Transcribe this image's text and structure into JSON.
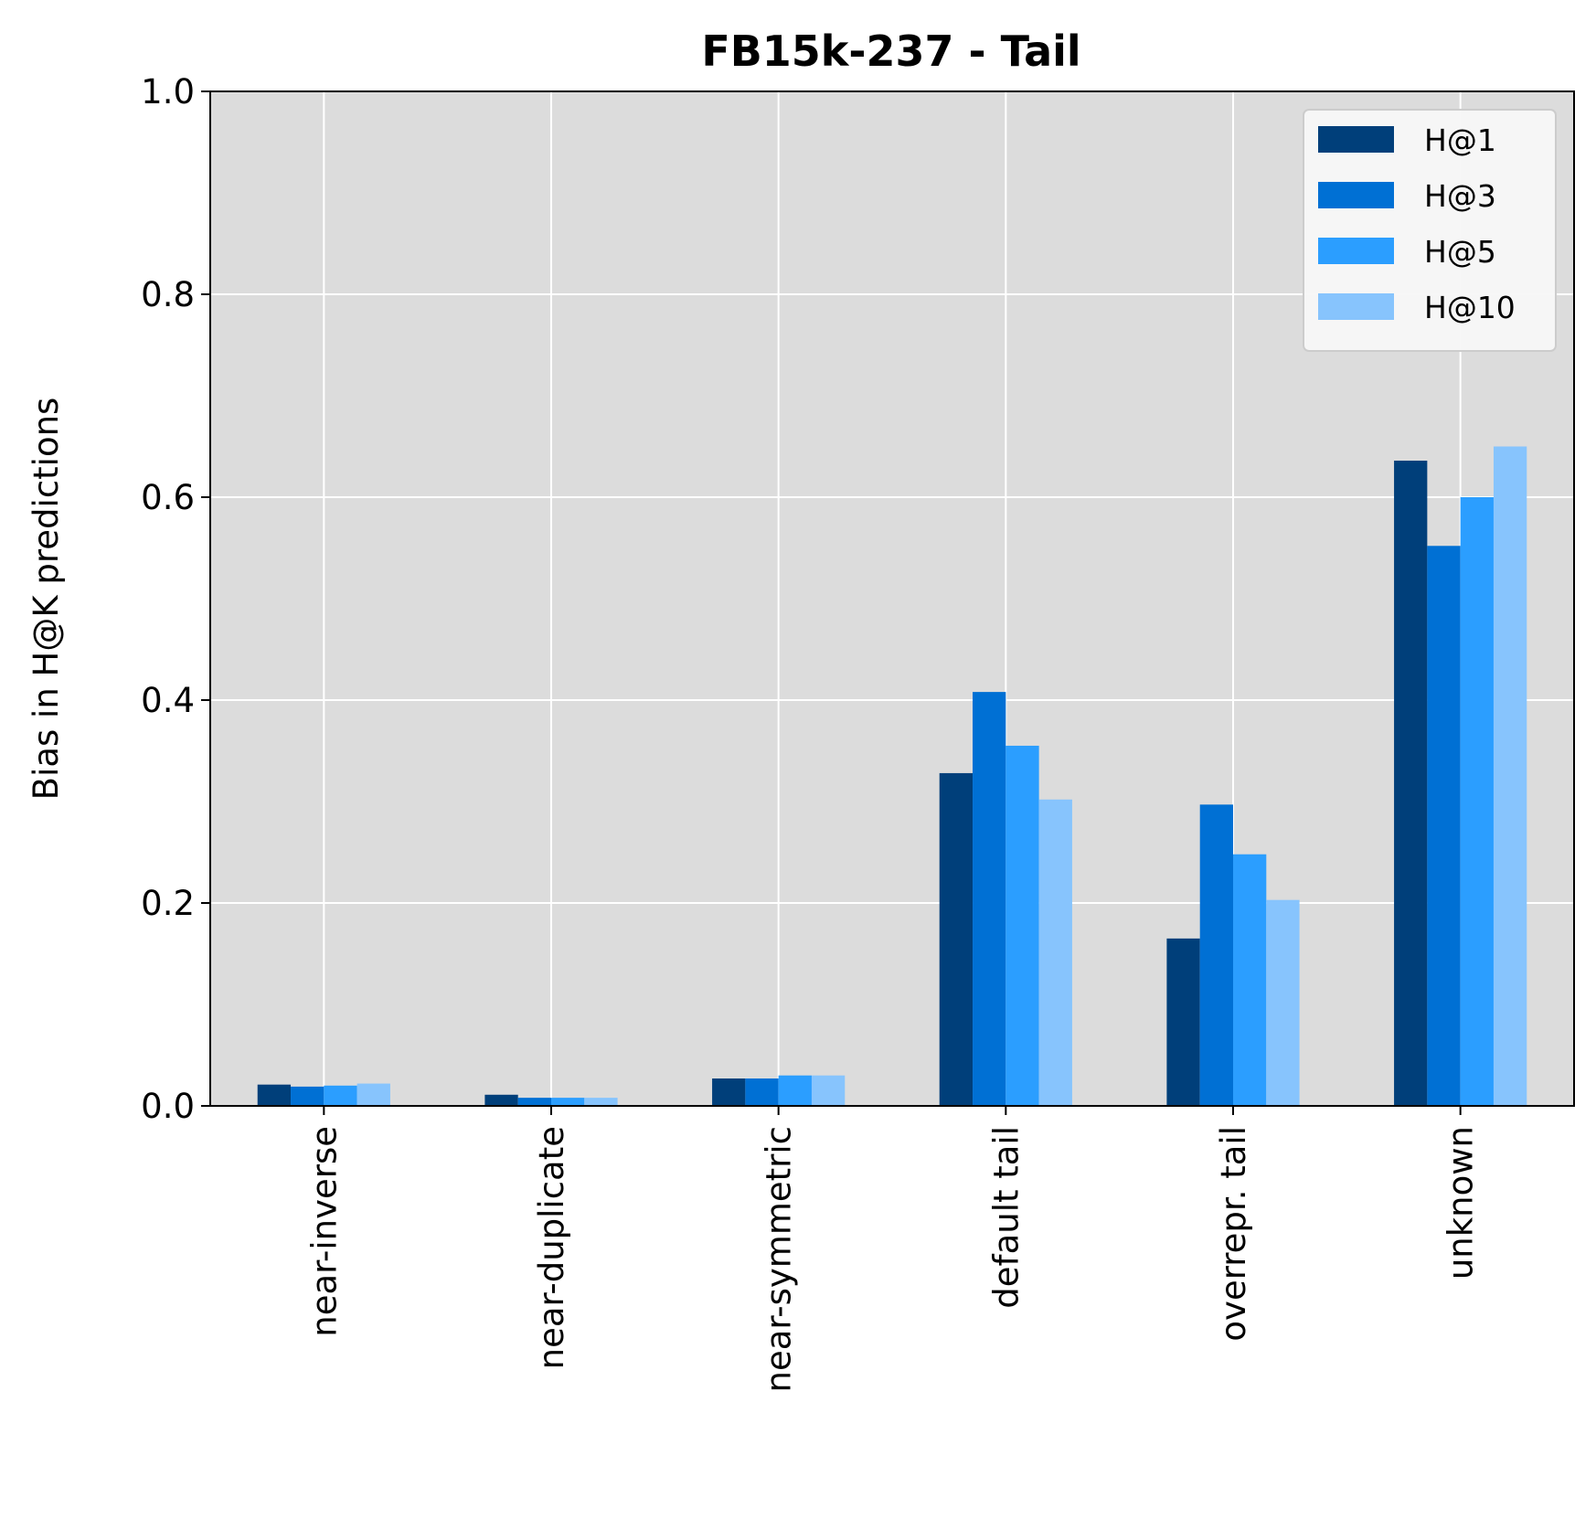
{
  "chart_data": {
    "type": "bar",
    "title": "FB15k-237 - Tail",
    "xlabel": "",
    "ylabel": "Bias in H@K predictions",
    "ylim": [
      0,
      1.0
    ],
    "yticks": [
      "0.0",
      "0.2",
      "0.4",
      "0.6",
      "0.8",
      "1.0"
    ],
    "ytick_values": [
      0,
      0.2,
      0.4,
      0.6,
      0.8,
      1.0
    ],
    "categories": [
      "near-inverse",
      "near-duplicate",
      "near-symmetric",
      "default tail",
      "overrepr. tail",
      "unknown"
    ],
    "series": [
      {
        "name": "H@1",
        "color": "#003f7a",
        "values": [
          0.021,
          0.011,
          0.027,
          0.328,
          0.165,
          0.636
        ]
      },
      {
        "name": "H@3",
        "color": "#0070d4",
        "values": [
          0.019,
          0.008,
          0.027,
          0.408,
          0.297,
          0.552
        ]
      },
      {
        "name": "H@5",
        "color": "#2b9eff",
        "values": [
          0.02,
          0.008,
          0.03,
          0.355,
          0.248,
          0.6
        ]
      },
      {
        "name": "H@10",
        "color": "#87c4fd",
        "values": [
          0.022,
          0.008,
          0.03,
          0.302,
          0.203,
          0.65
        ]
      }
    ],
    "grid": true,
    "legend_position": "top-right",
    "plot_background": "#dcdcdc",
    "grid_color": "#ffffff"
  }
}
